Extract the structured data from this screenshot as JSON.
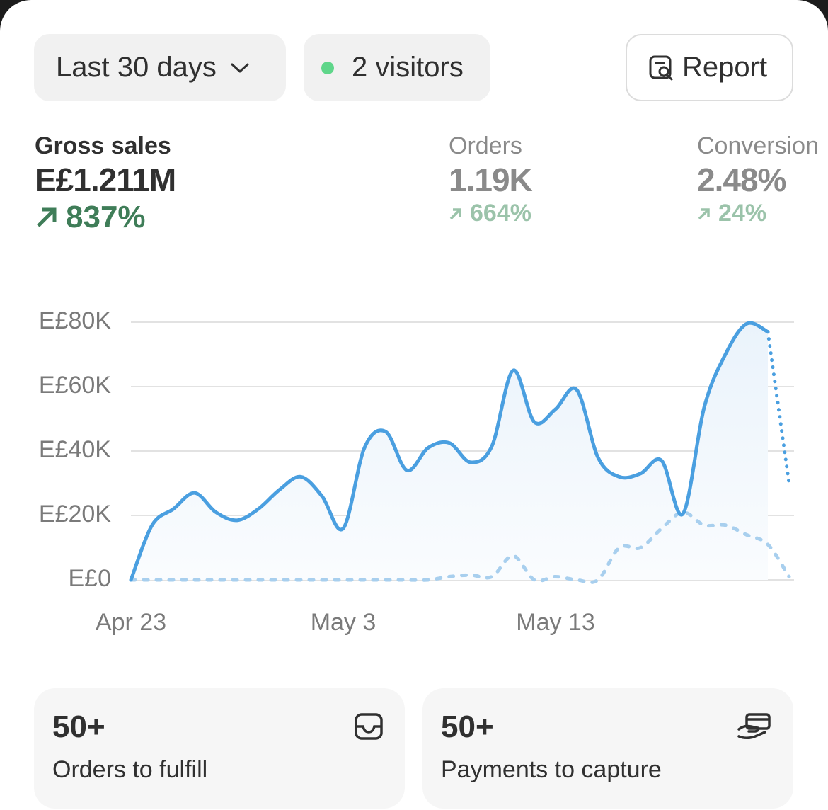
{
  "controls": {
    "period": "Last 30 days",
    "visitors": "2 visitors",
    "report": "Report"
  },
  "metrics": [
    {
      "label": "Gross sales",
      "value": "E£1.211M",
      "change": "837%"
    },
    {
      "label": "Orders",
      "value": "1.19K",
      "change": "664%"
    },
    {
      "label": "Conversion",
      "value": "2.48%",
      "change": "24%"
    }
  ],
  "chart_data": {
    "type": "line",
    "categories": [
      "Apr 23",
      null,
      null,
      null,
      null,
      null,
      null,
      null,
      null,
      null,
      "May 3",
      null,
      null,
      null,
      null,
      null,
      null,
      null,
      null,
      null,
      "May 13",
      null,
      null,
      null,
      null,
      null,
      null,
      null,
      null,
      null,
      null,
      null
    ],
    "series": [
      {
        "color": "#4a9fe0",
        "style": "solid",
        "values": [
          0,
          17000,
          22000,
          27000,
          21000,
          18500,
          22000,
          28000,
          32000,
          26000,
          16000,
          41000,
          46000,
          34000,
          41000,
          42500,
          36500,
          41500,
          65000,
          49000,
          53000,
          59000,
          38000,
          32000,
          33000,
          37000,
          20500,
          53500,
          70000,
          79500,
          77000,
          null
        ]
      },
      {
        "color": "#4a9fe0",
        "style": "dotted",
        "values": [
          null,
          null,
          null,
          null,
          null,
          null,
          null,
          null,
          null,
          null,
          null,
          null,
          null,
          null,
          null,
          null,
          null,
          null,
          null,
          null,
          null,
          null,
          null,
          null,
          null,
          null,
          null,
          null,
          null,
          null,
          77000,
          30000
        ]
      },
      {
        "color": "#a8cfee",
        "style": "dashed",
        "values": [
          0,
          0,
          0,
          0,
          0,
          0,
          0,
          0,
          0,
          0,
          0,
          0,
          0,
          0,
          0,
          1000,
          1500,
          1000,
          7500,
          0,
          1000,
          0,
          0,
          10000,
          10000,
          16000,
          21000,
          17000,
          17000,
          14000,
          11000,
          1000
        ]
      }
    ],
    "ylim": [
      0,
      80000
    ],
    "yticks": [
      {
        "value": 0,
        "label": "E£0"
      },
      {
        "value": 20000,
        "label": "E£20K"
      },
      {
        "value": 40000,
        "label": "E£40K"
      },
      {
        "value": 60000,
        "label": "E£60K"
      },
      {
        "value": 80000,
        "label": "E£80K"
      }
    ],
    "grid": true
  },
  "cards": [
    {
      "count": "50+",
      "label": "Orders to fulfill"
    },
    {
      "count": "50+",
      "label": "Payments to capture"
    }
  ]
}
